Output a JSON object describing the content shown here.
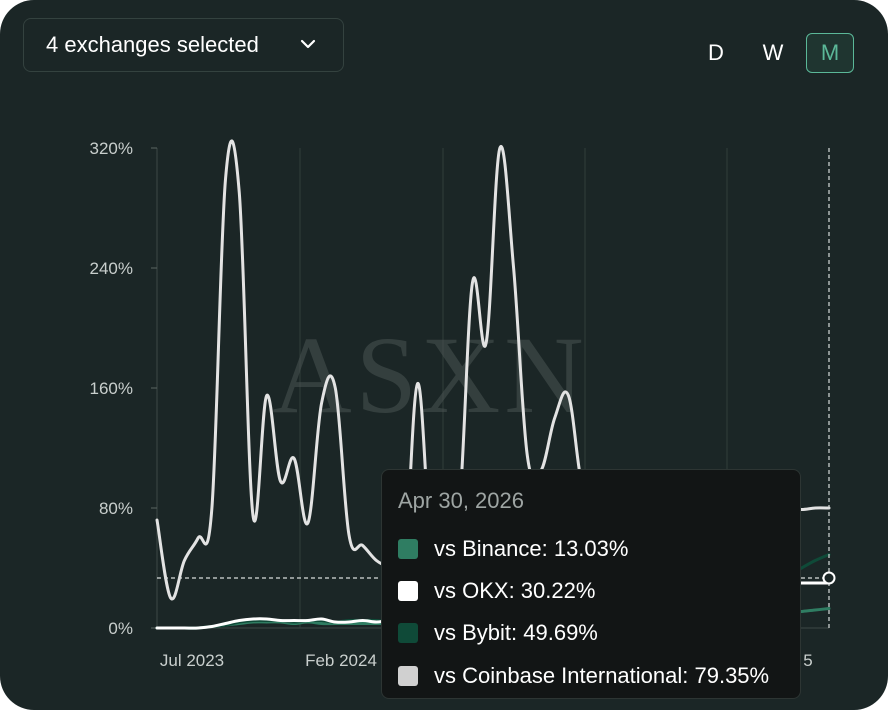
{
  "header": {
    "selector_label": "4 exchanges selected",
    "timeframes": [
      {
        "label": "D",
        "active": false
      },
      {
        "label": "W",
        "active": false
      },
      {
        "label": "M",
        "active": true
      }
    ]
  },
  "watermark": "ASXN",
  "tooltip": {
    "date": "Apr 30, 2026",
    "rows": [
      {
        "label": "vs Binance: 13.03%",
        "color": "#2f7d62"
      },
      {
        "label": "vs OKX: 30.22%",
        "color": "#ffffff"
      },
      {
        "label": "vs Bybit: 49.69%",
        "color": "#0f4a38"
      },
      {
        "label": "vs Coinbase International: 79.35%",
        "color": "#d0d0d0"
      }
    ]
  },
  "chart_data": {
    "type": "line",
    "y_ticks": [
      "0%",
      "80%",
      "160%",
      "240%",
      "320%"
    ],
    "x_ticks": [
      "Jul 2023",
      "Feb 2024",
      "",
      "",
      "",
      "5"
    ],
    "ylim": [
      0,
      320
    ],
    "series": [
      {
        "name": "vs Binance",
        "color": "#2f7d62",
        "values": [
          0,
          0,
          0,
          0,
          1,
          2,
          3,
          4,
          4,
          4,
          3,
          4,
          3,
          3,
          3,
          3,
          3,
          3,
          3,
          3,
          2,
          3,
          3,
          3,
          3,
          4,
          4,
          4,
          4,
          5,
          5,
          5,
          5,
          4,
          4,
          5,
          5,
          6,
          6,
          6,
          7,
          7,
          8,
          8,
          9,
          9,
          10,
          11,
          12,
          13
        ]
      },
      {
        "name": "vs Bybit",
        "color": "#0f4a38",
        "values": [
          0,
          0,
          0,
          0,
          1,
          2,
          4,
          5,
          5,
          5,
          4,
          5,
          5,
          4,
          5,
          5,
          5,
          4,
          5,
          5,
          4,
          5,
          5,
          5,
          6,
          6,
          6,
          6,
          6,
          7,
          7,
          8,
          8,
          8,
          8,
          9,
          9,
          10,
          12,
          14,
          16,
          18,
          20,
          22,
          25,
          30,
          35,
          40,
          45,
          49
        ]
      },
      {
        "name": "vs OKX",
        "color": "#ffffff",
        "values": [
          0,
          0,
          0,
          0,
          1,
          3,
          5,
          6,
          6,
          5,
          5,
          5,
          6,
          4,
          4,
          5,
          4,
          5,
          5,
          5,
          5,
          5,
          5,
          5,
          6,
          6,
          7,
          7,
          8,
          8,
          9,
          10,
          11,
          12,
          13,
          15,
          17,
          19,
          21,
          23,
          25,
          26,
          27,
          28,
          29,
          29,
          30,
          30,
          30,
          30
        ]
      },
      {
        "name": "vs Coinbase International",
        "color": "#e3e3e3",
        "values": [
          72,
          20,
          45,
          60,
          80,
          300,
          290,
          75,
          155,
          98,
          113,
          70,
          150,
          160,
          62,
          55,
          45,
          40,
          35,
          163,
          55,
          70,
          75,
          230,
          190,
          320,
          240,
          115,
          105,
          140,
          155,
          95,
          90,
          85,
          90,
          80,
          80,
          95,
          85,
          80,
          80,
          90,
          80,
          80,
          80,
          78,
          80,
          79,
          80,
          80
        ]
      }
    ]
  }
}
